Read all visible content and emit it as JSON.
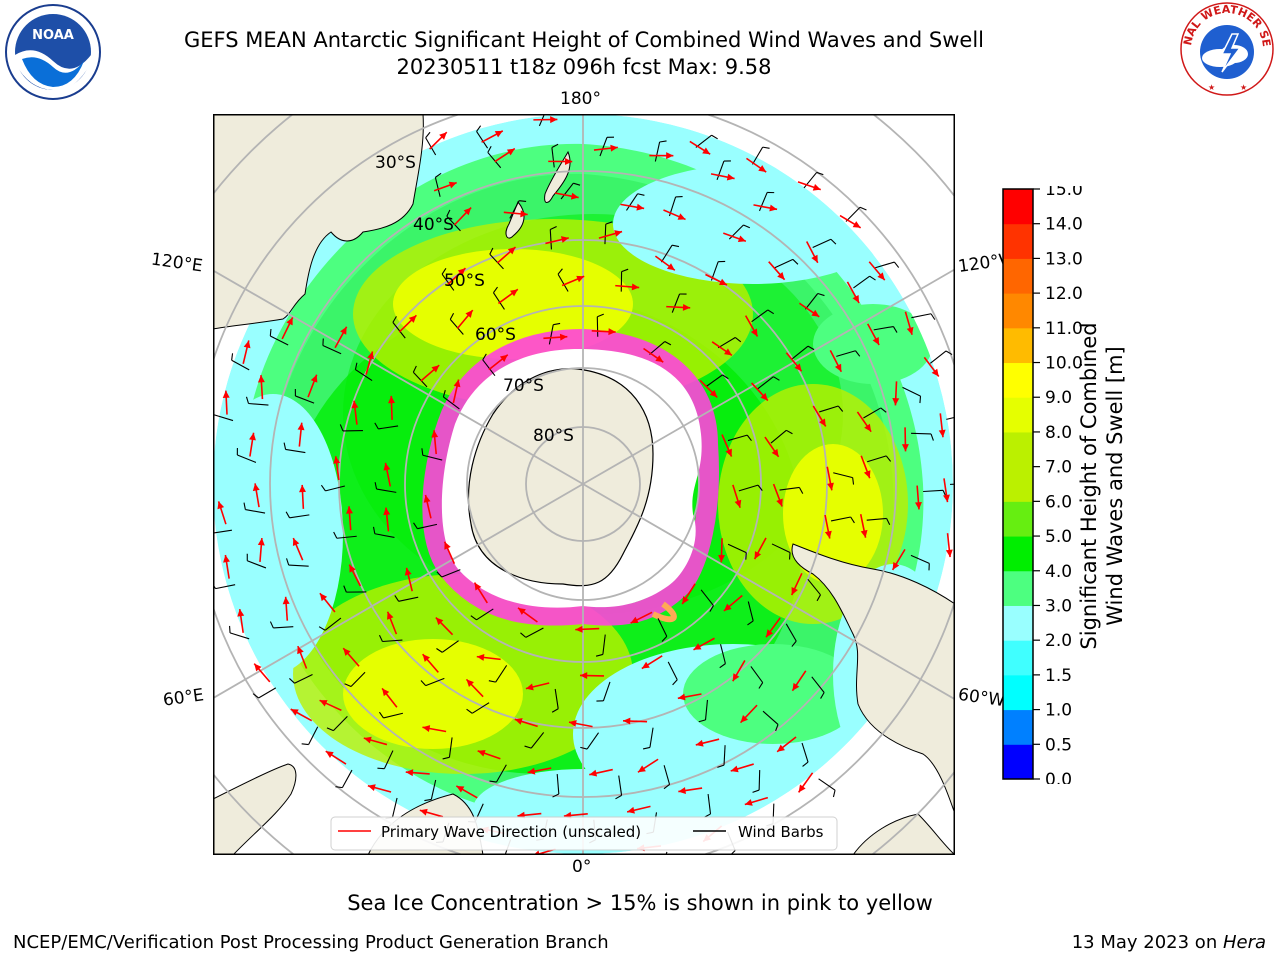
{
  "title": {
    "line1": "GEFS MEAN Antarctic Significant Height of Combined Wind Waves and Swell",
    "line2": "20230511 t18z 096h fcst   Max: 9.58"
  },
  "logos": {
    "left": {
      "icon": "noaa-logo",
      "text": "NOAA"
    },
    "right": {
      "icon": "nws-logo",
      "text": "NATIONAL WEATHER SERVICE"
    }
  },
  "map": {
    "projection": "south-polar-stereographic",
    "longitude_labels": [
      "180°",
      "120°E",
      "120°W",
      "60°E",
      "60°W",
      "0°"
    ],
    "latitude_labels": [
      "30°S",
      "40°S",
      "50°S",
      "60°S",
      "70°S",
      "80°S"
    ]
  },
  "legend": {
    "items": [
      {
        "label": "Primary Wave Direction (unscaled)",
        "color": "#ff0000"
      },
      {
        "label": "Wind Barbs",
        "color": "#000000"
      }
    ]
  },
  "colorbar": {
    "label_line1": "Significant Height of Combined",
    "label_line2": "Wind Waves and Swell [m]",
    "ticks": [
      "0.0",
      "0.5",
      "1.0",
      "1.5",
      "2.0",
      "3.0",
      "4.0",
      "5.0",
      "6.0",
      "7.0",
      "8.0",
      "9.0",
      "10.0",
      "11.0",
      "12.0",
      "13.0",
      "14.0",
      "15.0"
    ],
    "colors": [
      "#0000ff",
      "#0080ff",
      "#00ffff",
      "#40ffff",
      "#99ffff",
      "#4dff80",
      "#00ee00",
      "#66ee11",
      "#bbf000",
      "#e5ff00",
      "#ffff00",
      "#ffbb00",
      "#ff8800",
      "#ff6600",
      "#ff3300",
      "#ff0000"
    ]
  },
  "note": "Sea Ice Concentration > 15% is shown in pink to yellow",
  "footer": {
    "left": "NCEP/EMC/Verification Post Processing Product Generation Branch",
    "right_date": "13 May 2023 on ",
    "right_machine": "Hera"
  }
}
